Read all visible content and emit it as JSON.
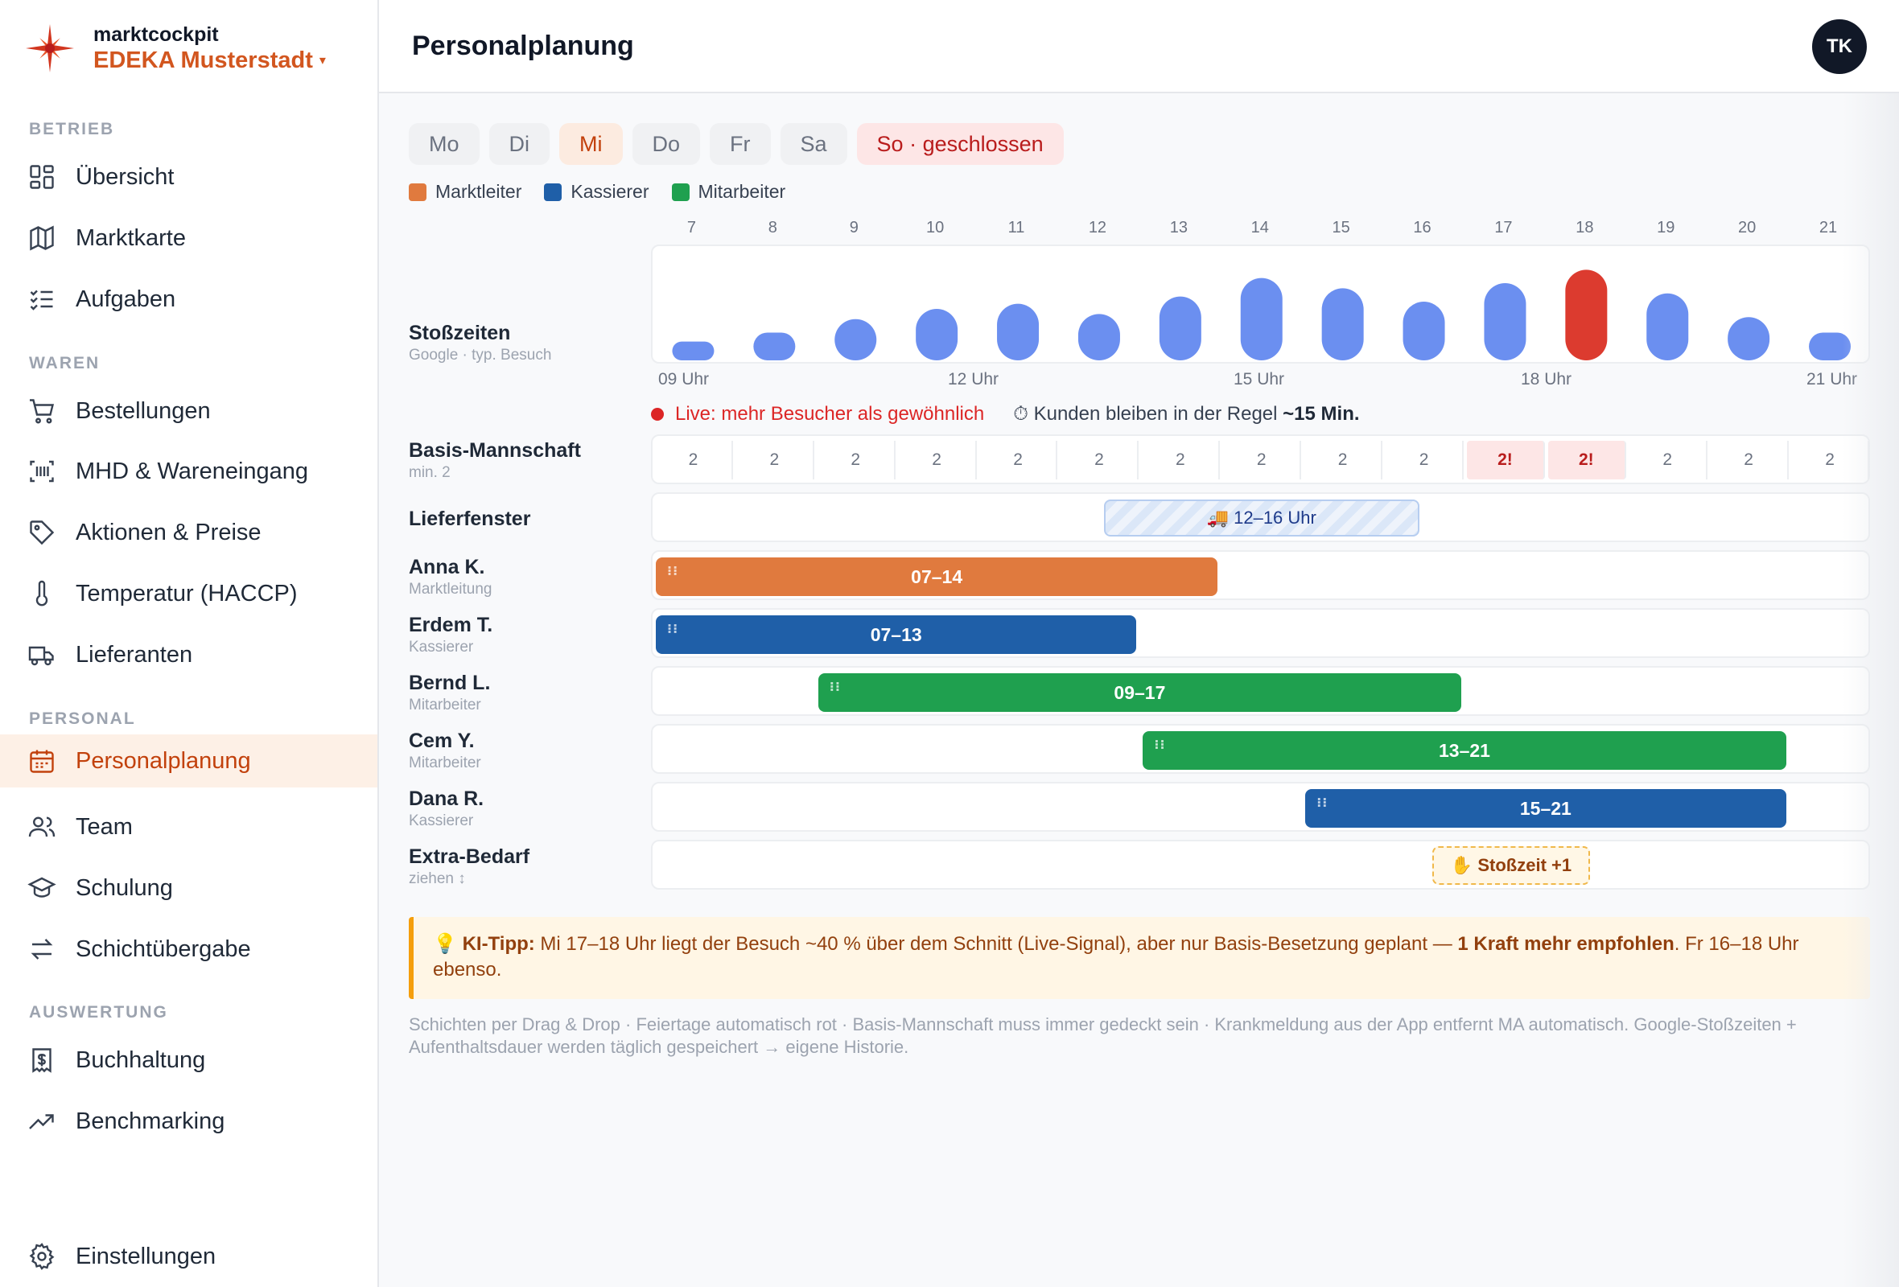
{
  "brand": {
    "top": "marktcockpit",
    "store": "EDEKA Musterstadt",
    "caret": "▾"
  },
  "sidebar": {
    "sections": [
      "BETRIEB",
      "WAREN",
      "PERSONAL",
      "AUSWERTUNG"
    ],
    "items": [
      {
        "label": "Übersicht",
        "icon": "grid-icon"
      },
      {
        "label": "Marktkarte",
        "icon": "map-icon"
      },
      {
        "label": "Aufgaben",
        "icon": "checklist-icon"
      },
      {
        "label": "Bestellungen",
        "icon": "cart-icon"
      },
      {
        "label": "MHD & Wareneingang",
        "icon": "barcode-icon"
      },
      {
        "label": "Aktionen & Preise",
        "icon": "tag-icon"
      },
      {
        "label": "Temperatur (HACCP)",
        "icon": "thermometer-icon"
      },
      {
        "label": "Lieferanten",
        "icon": "truck-icon"
      },
      {
        "label": "Personalplanung",
        "icon": "calendar-icon",
        "active": true
      },
      {
        "label": "Team",
        "icon": "users-icon"
      },
      {
        "label": "Schulung",
        "icon": "graduation-cap-icon"
      },
      {
        "label": "Schichtübergabe",
        "icon": "swap-icon"
      },
      {
        "label": "Buchhaltung",
        "icon": "receipt-icon"
      },
      {
        "label": "Benchmarking",
        "icon": "trend-icon"
      },
      {
        "label": "Einstellungen",
        "icon": "gear-icon"
      }
    ]
  },
  "header": {
    "title": "Personalplanung",
    "avatar": "TK"
  },
  "days": [
    "Mo",
    "Di",
    "Mi",
    "Do",
    "Fr",
    "Sa",
    "So · geschlossen"
  ],
  "active_day": "Mi",
  "legend": [
    {
      "label": "Marktleiter",
      "color": "#e07a3e"
    },
    {
      "label": "Kassierer",
      "color": "#1f5fa8"
    },
    {
      "label": "Mitarbeiter",
      "color": "#1fa04f"
    }
  ],
  "hours": [
    "7",
    "8",
    "9",
    "10",
    "11",
    "12",
    "13",
    "14",
    "15",
    "16",
    "17",
    "18",
    "19",
    "20",
    "21"
  ],
  "rows": {
    "peak": {
      "name": "Stoßzeiten",
      "sub": "Google · typ. Besuch"
    },
    "basis": {
      "name": "Basis-Mannschaft",
      "sub": "min. 2"
    },
    "delivery": {
      "name": "Lieferfenster"
    },
    "extra": {
      "name": "Extra-Bedarf",
      "sub": "ziehen ↕"
    }
  },
  "axis_labels": [
    "09 Uhr",
    "12 Uhr",
    "15 Uhr",
    "18 Uhr",
    "21 Uhr"
  ],
  "chart_data": {
    "type": "bar",
    "categories": [
      "7",
      "8",
      "9",
      "10",
      "11",
      "12",
      "13",
      "14",
      "15",
      "16",
      "17",
      "18",
      "19",
      "20",
      "21"
    ],
    "values": [
      15,
      27,
      40,
      50,
      55,
      45,
      62,
      80,
      70,
      57,
      75,
      88,
      65,
      42,
      27
    ],
    "highlight_index": 11,
    "colors": {
      "bar": "#6b8ff0",
      "highlight": "#dc3b2f"
    },
    "ylim": [
      0,
      100
    ]
  },
  "live": {
    "text": "Live: mehr Besucher als gewöhnlich",
    "stay_prefix": "⏱ Kunden bleiben in der Regel ",
    "stay_value": "~15 Min."
  },
  "basis_values": [
    "2",
    "2",
    "2",
    "2",
    "2",
    "2",
    "2",
    "2",
    "2",
    "2",
    "2!",
    "2!",
    "2",
    "2",
    "2"
  ],
  "delivery": {
    "label": "🚚 12–16 Uhr",
    "start": 12,
    "end": 16
  },
  "staff": [
    {
      "name": "Anna K.",
      "role": "Marktleitung",
      "shift": "07–14",
      "start": 7,
      "end": 14,
      "color": "#e07a3e"
    },
    {
      "name": "Erdem T.",
      "role": "Kassierer",
      "shift": "07–13",
      "start": 7,
      "end": 13,
      "color": "#1f5fa8"
    },
    {
      "name": "Bernd L.",
      "role": "Mitarbeiter",
      "shift": "09–17",
      "start": 9,
      "end": 17,
      "color": "#1fa04f"
    },
    {
      "name": "Cem Y.",
      "role": "Mitarbeiter",
      "shift": "13–21",
      "start": 13,
      "end": 21,
      "color": "#1fa04f"
    },
    {
      "name": "Dana R.",
      "role": "Kassierer",
      "shift": "15–21",
      "start": 15,
      "end": 21,
      "color": "#1f5fa8"
    }
  ],
  "extra_chip": {
    "label": "✋ Stoßzeit +1",
    "start": 16,
    "end": 18
  },
  "tip": {
    "prefix": "💡 ",
    "label": "KI-Tipp:",
    "text": " Mi 17–18 Uhr liegt der Besuch ~40 % über dem Schnitt (Live-Signal), aber nur Basis-Besetzung geplant — ",
    "emphasis": "1 Kraft mehr empfohlen",
    "suffix": ". Fr 16–18 Uhr ebenso."
  },
  "footer_note": "Schichten per Drag & Drop · Feiertage automatisch rot · Basis-Mannschaft muss immer gedeckt sein · Krankmeldung aus der App entfernt MA automatisch. Google-Stoßzeiten + Aufenthaltsdauer werden täglich gespeichert → eigene Historie."
}
